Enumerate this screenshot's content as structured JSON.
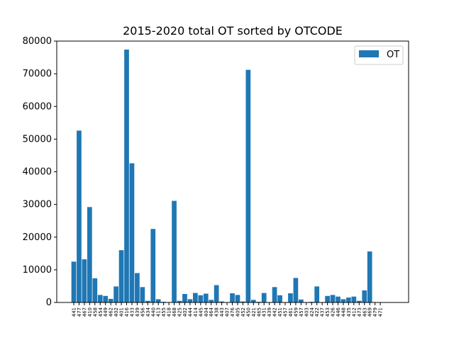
{
  "chart_data": {
    "type": "bar",
    "title": "2015-2020 total OT sorted by OTCODE",
    "xlabel": "",
    "ylabel": "",
    "ylim": [
      0,
      80000
    ],
    "yticks": [
      0,
      10000,
      20000,
      30000,
      40000,
      50000,
      60000,
      70000,
      80000
    ],
    "grid": false,
    "legend_position": "top-right",
    "bar_color": "#1f77b4",
    "categories": [
      "441",
      "477",
      "467",
      "410",
      "458",
      "454",
      "449",
      "462",
      "402",
      "401",
      "416",
      "433",
      "439",
      "456",
      "434",
      "440",
      "413",
      "455",
      "418",
      "468",
      "425",
      "402",
      "444",
      "414",
      "445",
      "404",
      "464",
      "438",
      "443",
      "407",
      "476",
      "405",
      "452",
      "450",
      "421",
      "465",
      "431",
      "439",
      "442",
      "451",
      "457",
      "461",
      "459",
      "457",
      "403",
      "424",
      "422",
      "437",
      "453",
      "426",
      "446",
      "448",
      "435",
      "412",
      "473",
      "463",
      "469",
      "479",
      "471"
    ],
    "series": [
      {
        "name": "OT",
        "values": [
          12500,
          52600,
          13200,
          29200,
          7400,
          2300,
          2000,
          1100,
          4900,
          16000,
          77400,
          42600,
          9000,
          4700,
          500,
          22500,
          1000,
          200,
          100,
          31100,
          500,
          2600,
          1000,
          2900,
          2200,
          2700,
          800,
          5300,
          300,
          100,
          2800,
          2300,
          300,
          71200,
          800,
          200,
          2900,
          100,
          4700,
          2200,
          100,
          2800,
          7500,
          900,
          100,
          200,
          4900,
          100,
          2000,
          2300,
          1800,
          1000,
          1500,
          1800,
          500,
          3700,
          15600,
          0,
          0
        ]
      }
    ]
  }
}
